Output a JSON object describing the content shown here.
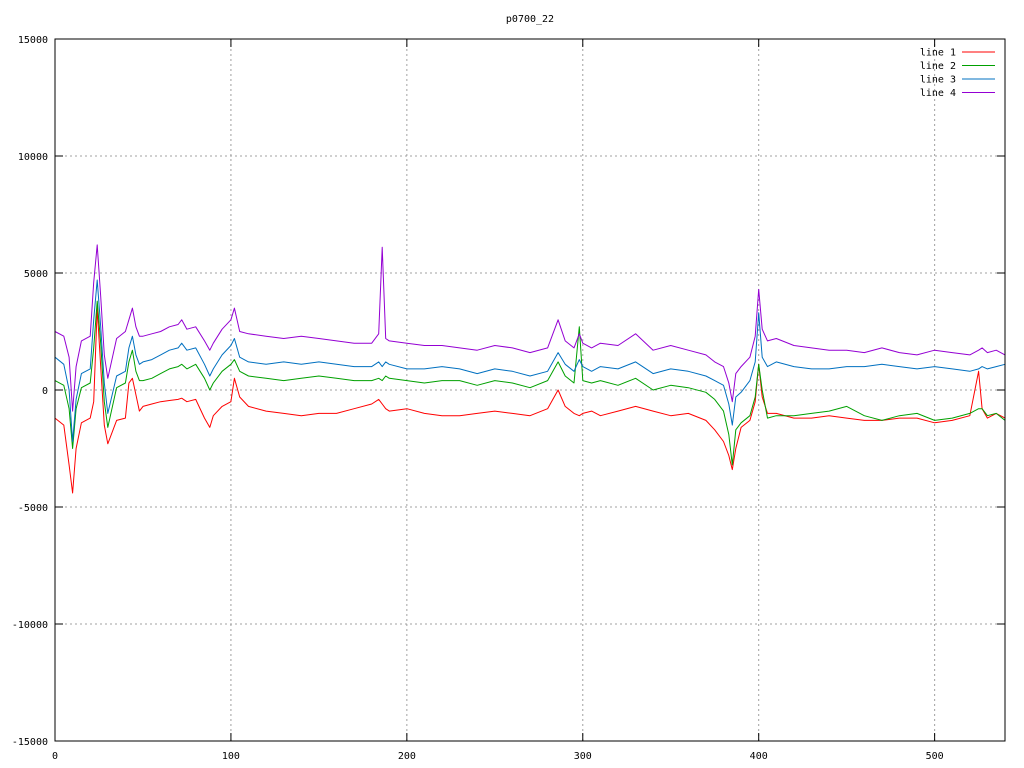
{
  "chart_data": {
    "type": "line",
    "title": "p0700_22",
    "xlabel": "",
    "ylabel": "",
    "xlim": [
      0,
      540
    ],
    "ylim": [
      -15000,
      15000
    ],
    "xticks": [
      0,
      100,
      200,
      300,
      400,
      500
    ],
    "yticks": [
      -15000,
      -10000,
      -5000,
      0,
      5000,
      10000,
      15000
    ],
    "grid": true,
    "legend_position": "top-right",
    "x": [
      0,
      5,
      8,
      10,
      12,
      15,
      20,
      22,
      24,
      26,
      28,
      30,
      35,
      40,
      42,
      44,
      46,
      48,
      50,
      55,
      60,
      65,
      70,
      72,
      75,
      80,
      85,
      88,
      90,
      95,
      100,
      102,
      105,
      110,
      120,
      130,
      140,
      150,
      160,
      170,
      180,
      184,
      186,
      188,
      190,
      200,
      210,
      220,
      230,
      240,
      250,
      260,
      270,
      280,
      286,
      290,
      295,
      298,
      300,
      305,
      310,
      320,
      330,
      340,
      350,
      360,
      370,
      375,
      380,
      383,
      385,
      387,
      390,
      395,
      398,
      400,
      402,
      405,
      410,
      420,
      430,
      440,
      450,
      460,
      470,
      480,
      490,
      500,
      510,
      520,
      525,
      527,
      530,
      535,
      540
    ],
    "series": [
      {
        "name": "line 1",
        "color": "#ff0000",
        "values": [
          -1200,
          -1500,
          -3200,
          -4400,
          -2500,
          -1400,
          -1200,
          -500,
          3500,
          1000,
          -1500,
          -2300,
          -1300,
          -1200,
          300,
          500,
          -200,
          -900,
          -700,
          -600,
          -500,
          -450,
          -400,
          -350,
          -500,
          -400,
          -1200,
          -1600,
          -1100,
          -700,
          -500,
          500,
          -300,
          -700,
          -900,
          -1000,
          -1100,
          -1000,
          -1000,
          -800,
          -600,
          -400,
          -600,
          -800,
          -900,
          -800,
          -1000,
          -1100,
          -1100,
          -1000,
          -900,
          -1000,
          -1100,
          -800,
          0,
          -700,
          -1000,
          -1100,
          -1000,
          -900,
          -1100,
          -900,
          -700,
          -900,
          -1100,
          -1000,
          -1300,
          -1700,
          -2200,
          -2800,
          -3400,
          -2500,
          -1600,
          -1300,
          -500,
          1100,
          -300,
          -1000,
          -1000,
          -1200,
          -1200,
          -1100,
          -1200,
          -1300,
          -1300,
          -1200,
          -1200,
          -1400,
          -1300,
          -1100,
          800,
          -800,
          -1200,
          -1000,
          -1200
        ]
      },
      {
        "name": "line 2",
        "color": "#00a000",
        "values": [
          400,
          200,
          -800,
          -2500,
          -800,
          100,
          300,
          1800,
          3800,
          2000,
          -500,
          -1600,
          100,
          300,
          1200,
          1700,
          800,
          400,
          400,
          500,
          700,
          900,
          1000,
          1100,
          900,
          1100,
          500,
          0,
          300,
          800,
          1100,
          1300,
          800,
          600,
          500,
          400,
          500,
          600,
          500,
          400,
          400,
          500,
          400,
          600,
          500,
          400,
          300,
          400,
          400,
          200,
          400,
          300,
          100,
          400,
          1200,
          600,
          300,
          2700,
          400,
          300,
          400,
          200,
          500,
          0,
          200,
          100,
          -100,
          -400,
          -900,
          -1900,
          -3200,
          -1700,
          -1400,
          -1100,
          -300,
          1100,
          0,
          -1200,
          -1100,
          -1100,
          -1000,
          -900,
          -700,
          -1100,
          -1300,
          -1100,
          -1000,
          -1300,
          -1200,
          -1000,
          -800,
          -800,
          -1100,
          -1000,
          -1300
        ]
      },
      {
        "name": "line 3",
        "color": "#0070c0",
        "values": [
          1400,
          1100,
          0,
          -2200,
          -400,
          700,
          900,
          3000,
          4700,
          2700,
          300,
          -1000,
          600,
          800,
          1800,
          2300,
          1500,
          1100,
          1200,
          1300,
          1500,
          1700,
          1800,
          2000,
          1700,
          1800,
          1100,
          600,
          900,
          1500,
          1900,
          2200,
          1400,
          1200,
          1100,
          1200,
          1100,
          1200,
          1100,
          1000,
          1000,
          1200,
          1000,
          1200,
          1100,
          900,
          900,
          1000,
          900,
          700,
          900,
          800,
          600,
          800,
          1600,
          1100,
          800,
          1300,
          1000,
          800,
          1000,
          900,
          1200,
          700,
          900,
          800,
          600,
          400,
          200,
          -600,
          -1500,
          -300,
          -100,
          400,
          1200,
          3300,
          1400,
          1000,
          1200,
          1000,
          900,
          900,
          1000,
          1000,
          1100,
          1000,
          900,
          1000,
          900,
          800,
          900,
          1000,
          900,
          1000,
          1100
        ]
      },
      {
        "name": "line 4",
        "color": "#9400d3",
        "values": [
          2500,
          2300,
          1400,
          -900,
          1000,
          2100,
          2300,
          4600,
          6200,
          4000,
          1500,
          500,
          2200,
          2500,
          3000,
          3500,
          2700,
          2300,
          2300,
          2400,
          2500,
          2700,
          2800,
          3000,
          2600,
          2700,
          2100,
          1700,
          2000,
          2600,
          3000,
          3500,
          2500,
          2400,
          2300,
          2200,
          2300,
          2200,
          2100,
          2000,
          2000,
          2400,
          6100,
          2200,
          2100,
          2000,
          1900,
          1900,
          1800,
          1700,
          1900,
          1800,
          1600,
          1800,
          3000,
          2100,
          1800,
          2400,
          2000,
          1800,
          2000,
          1900,
          2400,
          1700,
          1900,
          1700,
          1500,
          1200,
          1000,
          300,
          -500,
          700,
          1000,
          1400,
          2300,
          4300,
          2600,
          2100,
          2200,
          1900,
          1800,
          1700,
          1700,
          1600,
          1800,
          1600,
          1500,
          1700,
          1600,
          1500,
          1700,
          1800,
          1600,
          1700,
          1500
        ]
      }
    ]
  }
}
